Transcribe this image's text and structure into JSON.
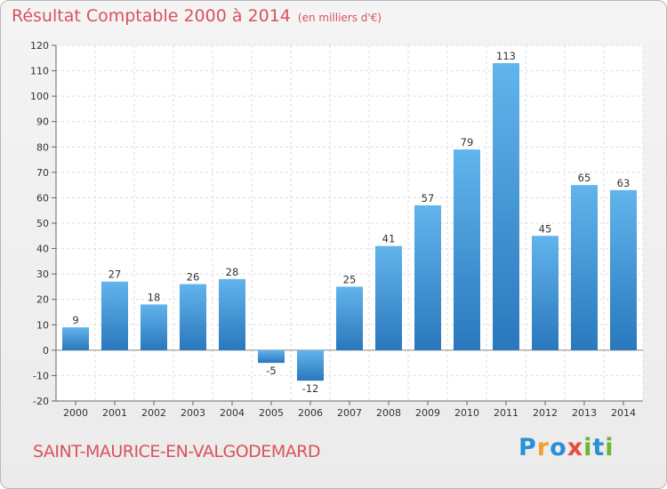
{
  "chart_data": {
    "type": "bar",
    "title": "Résultat Comptable 2000 à 2014",
    "subtitle": "(en milliers d'€)",
    "categories": [
      "2000",
      "2001",
      "2002",
      "2003",
      "2004",
      "2005",
      "2006",
      "2007",
      "2008",
      "2009",
      "2010",
      "2011",
      "2012",
      "2013",
      "2014"
    ],
    "values": [
      9,
      27,
      18,
      26,
      28,
      -5,
      -12,
      25,
      41,
      57,
      79,
      113,
      45,
      65,
      63
    ],
    "data_labels": [
      "9",
      "27",
      "18",
      "26",
      "28",
      "-5",
      "-12",
      "25",
      "41",
      "57",
      "79",
      "113",
      "45",
      "65",
      "63"
    ],
    "ylim": [
      -20,
      120
    ],
    "yticks": [
      -20,
      -10,
      0,
      10,
      20,
      30,
      40,
      50,
      60,
      70,
      80,
      90,
      100,
      110,
      120
    ],
    "ytick_labels": [
      "-20",
      "-10",
      "0",
      "10",
      "20",
      "30",
      "40",
      "50",
      "60",
      "70",
      "80",
      "90",
      "100",
      "110",
      "120"
    ],
    "grid": true,
    "xlabel": "",
    "ylabel": ""
  },
  "footer": {
    "town": "SAINT-MAURICE-EN-VALGODEMARD",
    "logo": "Proxiti"
  },
  "colors": {
    "title": "#d9535b",
    "bar_top": "#62b4ec",
    "bar_bottom": "#2978bd",
    "grid": "#dddddd",
    "logo_p": "#2a8fd6",
    "logo_r": "#f0a22e",
    "logo_o": "#2a8fd6",
    "logo_x": "#e84d3c",
    "logo_i": "#6bb533",
    "logo_t": "#2a8fd6",
    "logo_i2": "#6bb533"
  }
}
